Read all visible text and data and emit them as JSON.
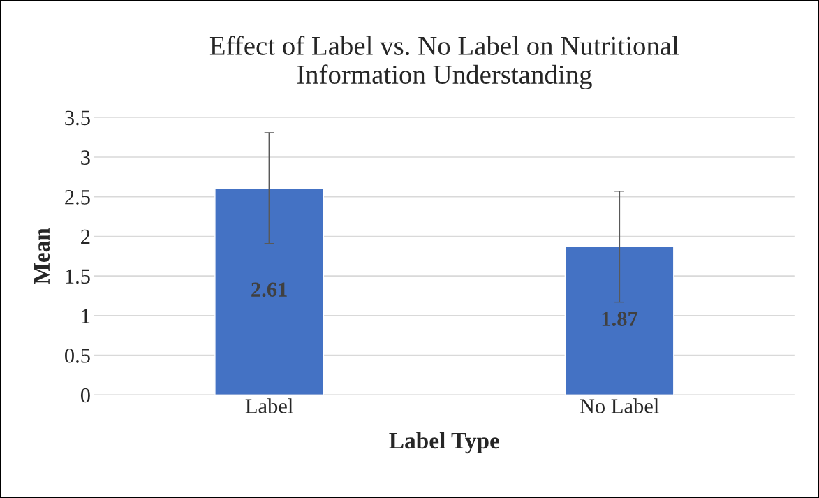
{
  "chart_data": {
    "type": "bar",
    "title": "Effect of Label vs. No Label on Nutritional\nInformation Understanding",
    "xlabel": "Label Type",
    "ylabel": "Mean",
    "categories": [
      "Label",
      "No Label"
    ],
    "values": [
      2.61,
      1.87
    ],
    "errors": [
      0.7,
      0.7
    ],
    "color": "#4472c4",
    "data_labels": true,
    "ylim": [
      0,
      3.5
    ],
    "yticks": [
      0,
      0.5,
      1,
      1.5,
      2,
      2.5,
      3,
      3.5
    ],
    "grid": "y",
    "legend": false
  }
}
